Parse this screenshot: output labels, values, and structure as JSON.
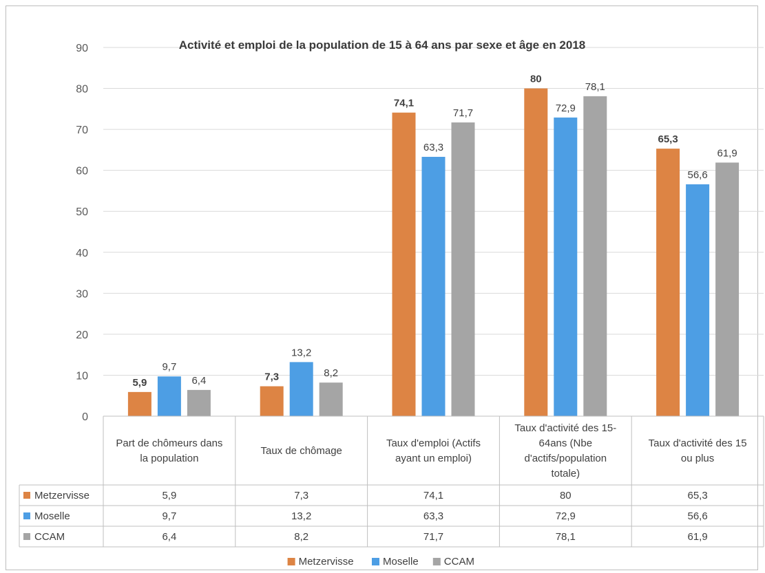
{
  "chart_data": {
    "type": "bar",
    "title": "Activité et emploi de la population de 15 à 64 ans par sexe et âge en 2018",
    "categories": [
      [
        "Part de chômeurs dans",
        "la population"
      ],
      [
        "Taux de chômage"
      ],
      [
        "Taux d'emploi (Actifs",
        "ayant un emploi)"
      ],
      [
        "Taux d'activité des 15-",
        "64ans (Nbe",
        "d'actifs/population",
        "totale)"
      ],
      [
        "Taux d'activité des 15",
        "ou plus"
      ]
    ],
    "series": [
      {
        "name": "Metzervisse",
        "color": "#dd8444",
        "values": [
          5.9,
          7.3,
          74.1,
          80,
          65.3
        ],
        "labels": [
          "5,9",
          "7,3",
          "74,1",
          "80",
          "65,3"
        ],
        "label_bold": true
      },
      {
        "name": "Moselle",
        "color": "#4d9ee4",
        "values": [
          9.7,
          13.2,
          63.3,
          72.9,
          56.6
        ],
        "labels": [
          "9,7",
          "13,2",
          "63,3",
          "72,9",
          "56,6"
        ],
        "label_bold": false
      },
      {
        "name": "CCAM",
        "color": "#a5a5a5",
        "values": [
          6.4,
          8.2,
          71.7,
          78.1,
          61.9
        ],
        "labels": [
          "6,4",
          "8,2",
          "71,7",
          "78,1",
          "61,9"
        ],
        "label_bold": false
      }
    ],
    "ylim": [
      0,
      90
    ],
    "yticks": [
      "0",
      "10",
      "20",
      "30",
      "40",
      "50",
      "60",
      "70",
      "80",
      "90"
    ],
    "grid": true,
    "data_table": true,
    "legend": "bottom"
  }
}
